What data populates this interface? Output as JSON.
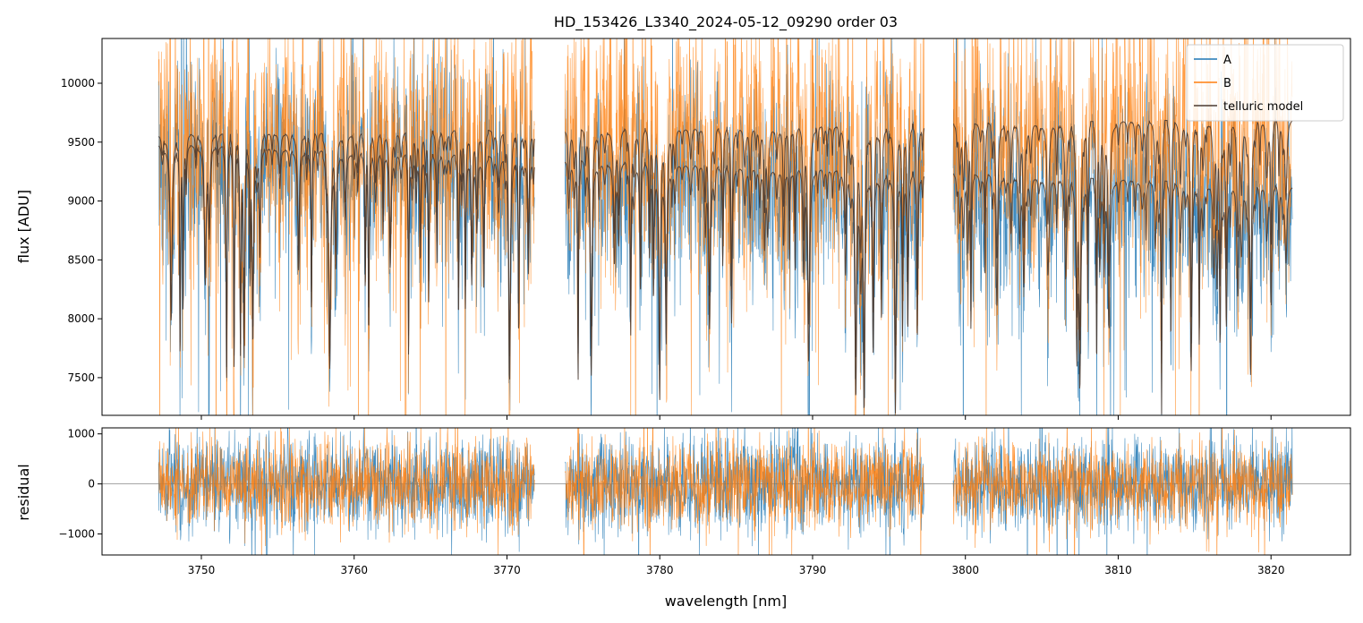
{
  "chart_data": [
    {
      "type": "line",
      "title": "HD_153426_L3340_2024-05-12_09290  order 03",
      "xlabel": "",
      "ylabel": "flux [ADU]",
      "xlim": [
        3743.5,
        3825.2
      ],
      "ylim": [
        7180,
        10380
      ],
      "yticks": [
        7500,
        8000,
        8500,
        9000,
        9500,
        10000
      ],
      "ytick_labels": [
        "7500",
        "8000",
        "8500",
        "9000",
        "9500",
        "10000"
      ],
      "xticks": [
        3750,
        3760,
        3770,
        3780,
        3790,
        3800,
        3810,
        3820
      ],
      "x_tick_labels_shown": false,
      "segments_nm": [
        [
          3747.2,
          3771.8
        ],
        [
          3773.8,
          3797.3
        ],
        [
          3799.2,
          3821.4
        ]
      ],
      "series": [
        {
          "name": "A",
          "color": "#1f77b4",
          "continuum_start": 9480,
          "continuum_end": 9130,
          "scatter": 420
        },
        {
          "name": "B",
          "color": "#ff7f0e",
          "continuum_start": 9560,
          "continuum_end": 9700,
          "scatter": 560
        },
        {
          "name": "telluric model",
          "color": "#4a3a30"
        }
      ],
      "legend": {
        "loc": "upper right",
        "entries": [
          "A",
          "B",
          "telluric model"
        ]
      },
      "grid": false
    },
    {
      "type": "line",
      "title": "",
      "xlabel": "wavelength [nm]",
      "ylabel": "residual",
      "xlim": [
        3743.5,
        3825.2
      ],
      "ylim": [
        -1420,
        1120
      ],
      "yticks": [
        -1000,
        0,
        1000
      ],
      "ytick_labels": [
        "−1000",
        "0",
        "1000"
      ],
      "xticks": [
        3750,
        3760,
        3770,
        3780,
        3790,
        3800,
        3810,
        3820
      ],
      "xtick_labels": [
        "3750",
        "3760",
        "3770",
        "3780",
        "3790",
        "3800",
        "3810",
        "3820"
      ],
      "zero_line": true,
      "series": [
        {
          "name": "A",
          "color": "#1f77b4",
          "scatter": 480
        },
        {
          "name": "B",
          "color": "#ff7f0e",
          "scatter": 430
        }
      ],
      "grid": false
    }
  ]
}
